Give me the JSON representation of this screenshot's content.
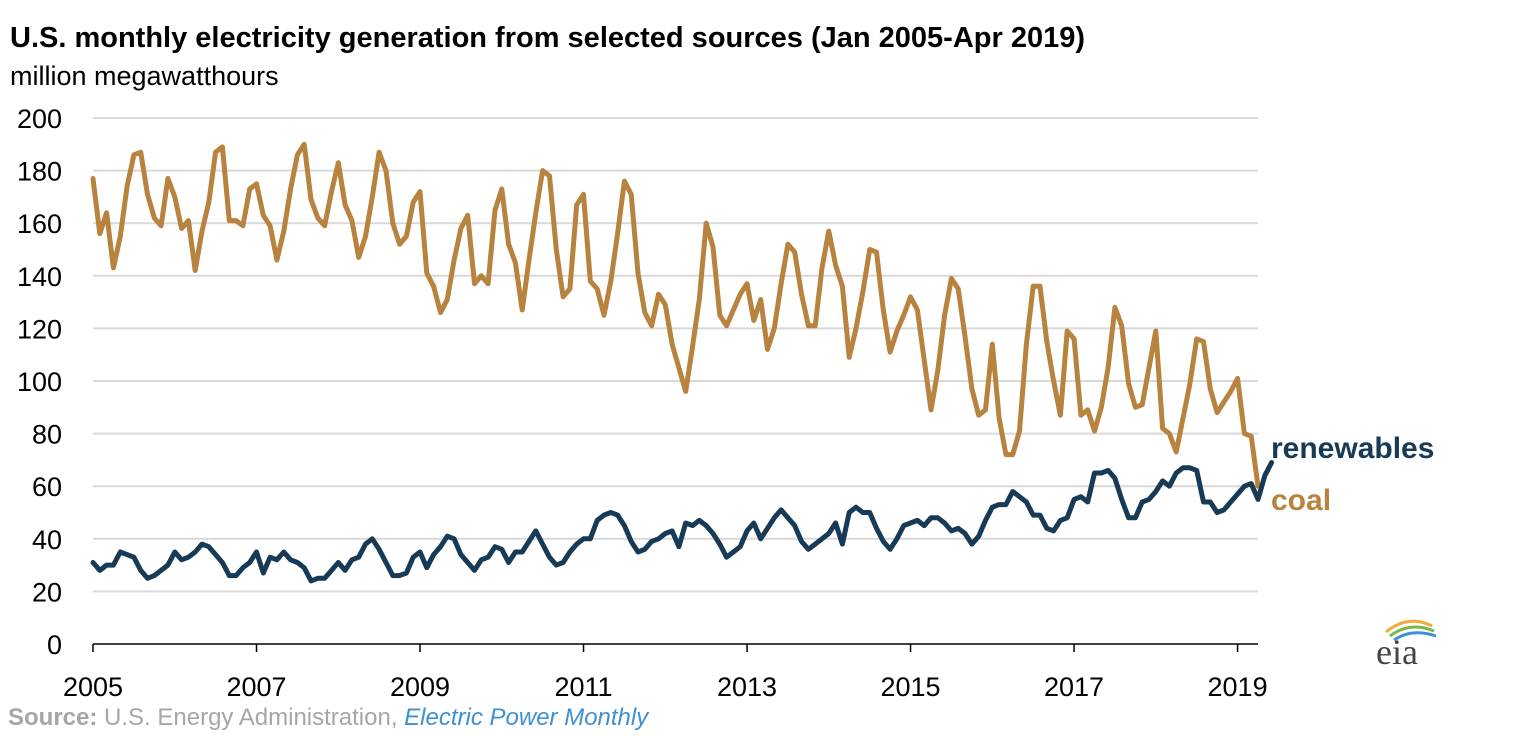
{
  "chart_data": {
    "type": "line",
    "title": "U.S. monthly electricity generation from selected sources (Jan 2005-Apr 2019)",
    "ylabel": "million megawatthours",
    "xlabel": "",
    "ylim": [
      0,
      200
    ],
    "yticks": [
      0,
      20,
      40,
      60,
      80,
      100,
      120,
      140,
      160,
      180,
      200
    ],
    "xticks": [
      "2005",
      "2007",
      "2009",
      "2011",
      "2013",
      "2015",
      "2017",
      "2019"
    ],
    "x_start": "2005-01",
    "x_end": "2019-04",
    "grid": true,
    "series": [
      {
        "name": "coal",
        "color": "#b8823f",
        "values": [
          177,
          156,
          164,
          143,
          155,
          174,
          186,
          187,
          171,
          162,
          159,
          177,
          170,
          158,
          161,
          142,
          157,
          168,
          187,
          189,
          161,
          161,
          159,
          173,
          175,
          163,
          159,
          146,
          157,
          173,
          186,
          190,
          169,
          162,
          159,
          172,
          183,
          167,
          161,
          147,
          155,
          170,
          187,
          180,
          160,
          152,
          155,
          168,
          172,
          141,
          136,
          126,
          131,
          146,
          158,
          163,
          137,
          140,
          137,
          165,
          173,
          152,
          145,
          127,
          146,
          164,
          180,
          178,
          150,
          132,
          135,
          167,
          171,
          138,
          135,
          125,
          138,
          156,
          176,
          171,
          141,
          126,
          121,
          133,
          129,
          114,
          105,
          96,
          113,
          131,
          160,
          151,
          125,
          121,
          127,
          133,
          137,
          123,
          131,
          112,
          120,
          137,
          152,
          149,
          133,
          121,
          121,
          143,
          157,
          144,
          136,
          109,
          120,
          134,
          150,
          149,
          127,
          111,
          119,
          125,
          132,
          127,
          108,
          89,
          104,
          125,
          139,
          135,
          117,
          97,
          87,
          89,
          114,
          86,
          72,
          72,
          81,
          114,
          136,
          136,
          115,
          100,
          87,
          119,
          116,
          87,
          89,
          81,
          90,
          105,
          128,
          121,
          99,
          90,
          91,
          105,
          119,
          82,
          80,
          73,
          86,
          99,
          116,
          115,
          97,
          88,
          92,
          96,
          101,
          80,
          79,
          60
        ]
      },
      {
        "name": "renewables",
        "color": "#173a56",
        "values": [
          31,
          28,
          30,
          30,
          35,
          34,
          33,
          28,
          25,
          26,
          28,
          30,
          35,
          32,
          33,
          35,
          38,
          37,
          34,
          31,
          26,
          26,
          29,
          31,
          35,
          27,
          33,
          32,
          35,
          32,
          31,
          29,
          24,
          25,
          25,
          28,
          31,
          28,
          32,
          33,
          38,
          40,
          36,
          31,
          26,
          26,
          27,
          33,
          35,
          29,
          34,
          37,
          41,
          40,
          34,
          31,
          28,
          32,
          33,
          37,
          36,
          31,
          35,
          35,
          39,
          43,
          38,
          33,
          30,
          31,
          35,
          38,
          40,
          40,
          47,
          49,
          50,
          49,
          45,
          39,
          35,
          36,
          39,
          40,
          42,
          43,
          37,
          46,
          45,
          47,
          45,
          42,
          38,
          33,
          35,
          37,
          43,
          46,
          40,
          44,
          48,
          51,
          48,
          45,
          39,
          36,
          38,
          40,
          42,
          46,
          38,
          50,
          52,
          50,
          50,
          44,
          39,
          36,
          40,
          45,
          46,
          47,
          45,
          48,
          48,
          46,
          43,
          44,
          42,
          38,
          41,
          47,
          52,
          53,
          53,
          58,
          56,
          54,
          49,
          49,
          44,
          43,
          47,
          48,
          55,
          56,
          54,
          65,
          65,
          66,
          63,
          55,
          48,
          48,
          54,
          55,
          58,
          62,
          60,
          65,
          67,
          67,
          66,
          54,
          54,
          50,
          51,
          54,
          57,
          60,
          61,
          55,
          64,
          69
        ]
      }
    ],
    "annotations": [
      "renewables",
      "coal"
    ]
  },
  "source": {
    "label": "Source:",
    "text": " U.S. Energy Administration, ",
    "publication": "Electric Power Monthly"
  },
  "logo": {
    "text": "eia",
    "icon": "eia-logo-icon",
    "colors": [
      "#f2a93b",
      "#7ab648",
      "#3f8fd2"
    ]
  }
}
